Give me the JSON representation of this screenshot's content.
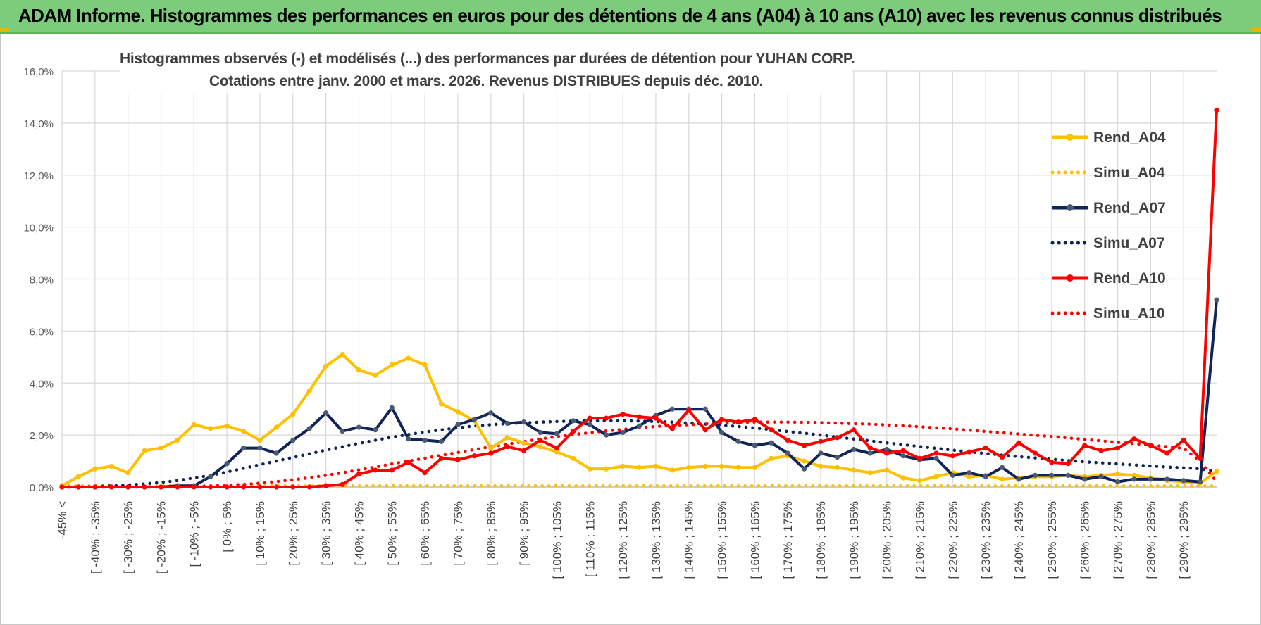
{
  "banner": {
    "title": "ADAM Informe. Histogrammes des performances en euros pour des détentions de 4 ans (A04) à 10 ans (A10) avec les revenus connus distribués"
  },
  "colors": {
    "banner_bg": "#7ccc7c",
    "A04": "#ffc000",
    "A07": "#0f2557",
    "A10": "#ff0000",
    "grid": "#d9d9d9"
  },
  "chart_data": {
    "type": "line",
    "title_line1": "Histogrammes observés (-) et modélisés (...) des performances par durées de détention pour YUHAN CORP.",
    "title_line2": "Cotations entre janv. 2000 et mars. 2026. Revenus DISTRIBUES depuis déc. 2010.",
    "xlabel": "",
    "ylabel": "",
    "ylim": [
      0,
      16
    ],
    "yticks": [
      "0,0%",
      "2,0%",
      "4,0%",
      "6,0%",
      "8,0%",
      "10,0%",
      "12,0%",
      "14,0%",
      "16,0%"
    ],
    "grid": true,
    "legend_position": "right",
    "x_tick_labels": [
      "-45% <",
      "[ -40% ; -35%",
      "[ -30% ; -25%",
      "[ -20% ; -15%",
      "[ -10% ; -5%",
      "[ 0% ; 5%",
      "[ 10% ; 15%",
      "[ 20% ; 25%",
      "[ 30% ; 35%",
      "[ 40% ; 45%",
      "[ 50% ; 55%",
      "[ 60% ; 65%",
      "[ 70% ; 75%",
      "[ 80% ; 85%",
      "[ 90% ; 95%",
      "[ 100% ; 105%",
      "[ 110% ; 115%",
      "[ 120% ; 125%",
      "[ 130% ; 135%",
      "[ 140% ; 145%",
      "[ 150% ; 155%",
      "[ 160% ; 165%",
      "[ 170% ; 175%",
      "[ 180% ; 185%",
      "[ 190% ; 195%",
      "[ 200% ; 205%",
      "[ 210% ; 215%",
      "[ 220% ; 225%",
      "[ 230% ; 235%",
      "[ 240% ; 245%",
      "[ 250% ; 255%",
      "[ 260% ; 265%",
      "[ 270% ; 275%",
      "[ 280% ; 285%",
      "[ 290% ; 295%"
    ],
    "n_points": 71,
    "series": [
      {
        "name": "Rend_A04",
        "style": "solid-markers",
        "color": "#ffc000",
        "values": [
          0.05,
          0.4,
          0.7,
          0.8,
          0.55,
          1.4,
          1.5,
          1.8,
          2.4,
          2.25,
          2.35,
          2.15,
          1.8,
          2.3,
          2.8,
          3.7,
          4.65,
          5.1,
          4.5,
          4.3,
          4.7,
          4.95,
          4.7,
          3.2,
          2.9,
          2.55,
          1.5,
          1.9,
          1.7,
          1.55,
          1.35,
          1.1,
          0.7,
          0.7,
          0.8,
          0.75,
          0.8,
          0.65,
          0.75,
          0.8,
          0.8,
          0.75,
          0.75,
          1.1,
          1.2,
          1.0,
          0.8,
          0.75,
          0.65,
          0.55,
          0.65,
          0.35,
          0.25,
          0.4,
          0.55,
          0.4,
          0.45,
          0.3,
          0.35,
          0.4,
          0.4,
          0.45,
          0.4,
          0.45,
          0.5,
          0.45,
          0.35,
          0.25,
          0.2,
          0.15,
          0.6
        ]
      },
      {
        "name": "Simu_A04",
        "style": "dotted",
        "color": "#ffc000",
        "values": [
          0.05,
          0.05,
          0.05,
          0.05,
          0.05,
          0.05,
          0.05,
          0.05,
          0.05,
          0.05,
          0.05,
          0.05,
          0.05,
          0.05,
          0.05,
          0.05,
          0.05,
          0.05,
          0.05,
          0.05,
          0.05,
          0.05,
          0.05,
          0.05,
          0.05,
          0.05,
          0.05,
          0.05,
          0.05,
          0.05,
          0.05,
          0.05,
          0.05,
          0.05,
          0.05,
          0.05,
          0.05,
          0.05,
          0.05,
          0.05,
          0.05,
          0.05,
          0.05,
          0.05,
          0.05,
          0.05,
          0.05,
          0.05,
          0.05,
          0.05,
          0.05,
          0.05,
          0.05,
          0.05,
          0.05,
          0.05,
          0.05,
          0.05,
          0.05,
          0.05,
          0.05,
          0.05,
          0.05,
          0.05,
          0.05,
          0.05,
          0.05,
          0.05,
          0.05,
          0.05,
          0.05
        ]
      },
      {
        "name": "Rend_A07",
        "style": "solid-markers",
        "color": "#0f2557",
        "values": [
          0,
          0,
          0,
          0,
          0,
          0,
          0,
          0.05,
          0.05,
          0.4,
          0.9,
          1.5,
          1.5,
          1.3,
          1.8,
          2.25,
          2.85,
          2.15,
          2.3,
          2.2,
          3.05,
          1.85,
          1.8,
          1.75,
          2.4,
          2.6,
          2.85,
          2.45,
          2.5,
          2.1,
          2.05,
          2.55,
          2.4,
          2.0,
          2.1,
          2.35,
          2.75,
          3.0,
          3.0,
          3.0,
          2.1,
          1.75,
          1.6,
          1.7,
          1.3,
          0.7,
          1.3,
          1.15,
          1.45,
          1.3,
          1.45,
          1.2,
          1.05,
          1.1,
          0.45,
          0.55,
          0.4,
          0.75,
          0.3,
          0.45,
          0.45,
          0.45,
          0.3,
          0.4,
          0.2,
          0.3,
          0.3,
          0.3,
          0.25,
          0.2,
          7.2
        ]
      },
      {
        "name": "Simu_A07",
        "style": "dotted",
        "color": "#0f2557",
        "values": [
          0,
          0,
          0.02,
          0.05,
          0.08,
          0.12,
          0.18,
          0.25,
          0.35,
          0.45,
          0.58,
          0.72,
          0.86,
          1.0,
          1.14,
          1.28,
          1.42,
          1.55,
          1.68,
          1.8,
          1.92,
          2.02,
          2.12,
          2.2,
          2.28,
          2.35,
          2.4,
          2.44,
          2.47,
          2.5,
          2.52,
          2.54,
          2.55,
          2.55,
          2.55,
          2.54,
          2.52,
          2.5,
          2.46,
          2.42,
          2.38,
          2.33,
          2.27,
          2.21,
          2.14,
          2.07,
          2.0,
          1.92,
          1.85,
          1.78,
          1.7,
          1.63,
          1.56,
          1.49,
          1.42,
          1.35,
          1.29,
          1.23,
          1.17,
          1.12,
          1.07,
          1.02,
          0.97,
          0.93,
          0.89,
          0.85,
          0.81,
          0.77,
          0.74,
          0.7,
          0.6
        ]
      },
      {
        "name": "Rend_A10",
        "style": "solid-markers",
        "color": "#ff0000",
        "values": [
          0,
          0,
          0,
          0,
          0,
          0,
          0,
          0,
          0,
          0,
          0,
          0,
          0,
          0,
          0,
          0,
          0.05,
          0.1,
          0.5,
          0.65,
          0.65,
          0.95,
          0.55,
          1.1,
          1.05,
          1.2,
          1.3,
          1.55,
          1.4,
          1.8,
          1.5,
          2.15,
          2.65,
          2.65,
          2.8,
          2.7,
          2.65,
          2.25,
          2.95,
          2.2,
          2.6,
          2.5,
          2.6,
          2.2,
          1.8,
          1.6,
          1.75,
          1.9,
          2.2,
          1.5,
          1.3,
          1.4,
          1.1,
          1.3,
          1.2,
          1.35,
          1.5,
          1.15,
          1.7,
          1.3,
          0.95,
          0.9,
          1.6,
          1.4,
          1.5,
          1.85,
          1.6,
          1.3,
          1.8,
          1.1,
          14.5
        ]
      },
      {
        "name": "Simu_A10",
        "style": "dotted",
        "color": "#ff0000",
        "values": [
          0,
          0,
          0,
          0,
          0,
          0,
          0,
          0,
          0.02,
          0.04,
          0.07,
          0.1,
          0.15,
          0.21,
          0.28,
          0.36,
          0.45,
          0.55,
          0.66,
          0.77,
          0.89,
          1.0,
          1.11,
          1.22,
          1.33,
          1.44,
          1.55,
          1.65,
          1.75,
          1.85,
          1.94,
          2.02,
          2.09,
          2.16,
          2.22,
          2.28,
          2.33,
          2.37,
          2.4,
          2.43,
          2.46,
          2.48,
          2.5,
          2.5,
          2.5,
          2.49,
          2.48,
          2.46,
          2.44,
          2.42,
          2.39,
          2.36,
          2.32,
          2.28,
          2.24,
          2.19,
          2.14,
          2.09,
          2.04,
          1.99,
          1.94,
          1.89,
          1.83,
          1.78,
          1.72,
          1.67,
          1.61,
          1.55,
          1.49,
          1.0,
          0.2
        ]
      }
    ]
  }
}
